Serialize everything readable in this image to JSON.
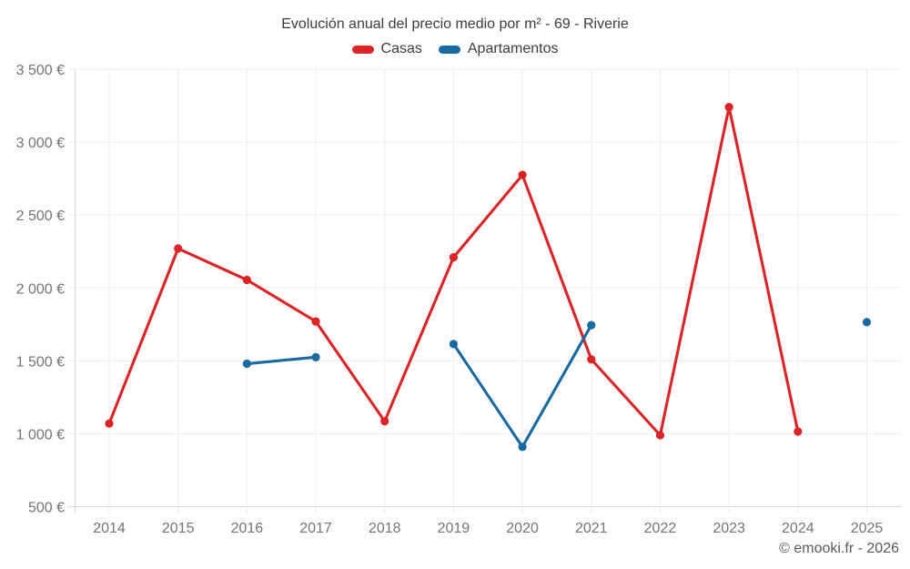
{
  "page": {
    "title": "Evolución anual del precio medio por m² - 69 - Riverie",
    "footer_credit": "© emooki.fr - 2026"
  },
  "legend": {
    "items": [
      {
        "label": "Casas",
        "color": "#dc2427"
      },
      {
        "label": "Apartamentos",
        "color": "#1a6aa2"
      }
    ]
  },
  "colors": {
    "grid": "#ededed",
    "axis": "#d9d9d9",
    "tick_text": "#757575",
    "title_text": "#3d3d3d",
    "footer_text": "#5a5a5a",
    "casas": "#dc2427",
    "apartamentos": "#1a6aa2"
  },
  "chart_data": {
    "type": "line",
    "title": "Evolución anual del precio medio por m² - 69 - Riverie",
    "categories": [
      "2014",
      "2015",
      "2016",
      "2017",
      "2018",
      "2019",
      "2020",
      "2021",
      "2022",
      "2023",
      "2024",
      "2025"
    ],
    "series": [
      {
        "name": "Casas",
        "color": "#dc2427",
        "values": [
          1070,
          2270,
          2055,
          1770,
          1085,
          2210,
          2775,
          1510,
          990,
          3240,
          1015,
          null
        ]
      },
      {
        "name": "Apartamentos",
        "color": "#1a6aa2",
        "values": [
          null,
          null,
          1480,
          1525,
          null,
          1615,
          910,
          1745,
          null,
          null,
          null,
          1765
        ]
      }
    ],
    "ylim": [
      500,
      3500
    ],
    "y_ticks": [
      {
        "value": 500,
        "label": "500 €"
      },
      {
        "value": 1000,
        "label": "1 000 €"
      },
      {
        "value": 1500,
        "label": "1 500 €"
      },
      {
        "value": 2000,
        "label": "2 000 €"
      },
      {
        "value": 2500,
        "label": "2 500 €"
      },
      {
        "value": 3000,
        "label": "3 000 €"
      },
      {
        "value": 3500,
        "label": "3 500 €"
      }
    ],
    "xlabel": "",
    "ylabel": "",
    "grid": true,
    "legend_position": "top",
    "currency": "€"
  }
}
